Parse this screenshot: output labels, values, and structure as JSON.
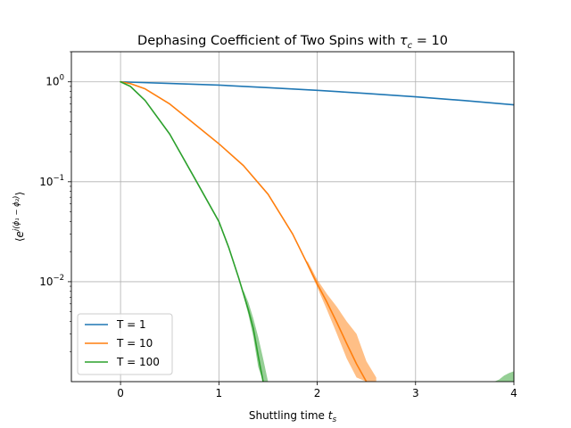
{
  "chart_data": {
    "type": "line",
    "title": "Dephasing Coefficient of Two Spins with τc = 10",
    "title_parts": {
      "main": "Dephasing Coefficient of Two Spins with ",
      "symbol": "τ",
      "sub": "c",
      "tail": " = 10"
    },
    "xlabel": "Shuttling time ts",
    "xlabel_parts": {
      "main": "Shuttling time ",
      "symbol": "t",
      "sub": "s"
    },
    "ylabel": "⟨e^{i(φ1 − φ2)}⟩",
    "ylabel_parts": {
      "open": "⟨",
      "base": "e",
      "sup": "i(ϕ₁ − ϕ₂)",
      "close": "⟩"
    },
    "xlim": [
      -0.5,
      4.0
    ],
    "ylim": [
      0.001,
      2.0
    ],
    "yscale": "log",
    "grid": true,
    "legend_position": "lower-left",
    "x_ticks": [
      {
        "value": 0,
        "label": "0"
      },
      {
        "value": 1,
        "label": "1"
      },
      {
        "value": 2,
        "label": "2"
      },
      {
        "value": 3,
        "label": "3"
      },
      {
        "value": 4,
        "label": "4"
      }
    ],
    "y_ticks": [
      {
        "value": 1,
        "base": "10",
        "exp": "0"
      },
      {
        "value": 0.1,
        "base": "10",
        "exp": "−1"
      },
      {
        "value": 0.01,
        "base": "10",
        "exp": "−2"
      }
    ],
    "series": [
      {
        "name": "T = 1",
        "color": "#1f77b4",
        "x": [
          0,
          0.5,
          1,
          1.5,
          2,
          2.5,
          3,
          3.5,
          4
        ],
        "y": [
          1.0,
          0.963,
          0.926,
          0.874,
          0.822,
          0.765,
          0.708,
          0.648,
          0.588
        ]
      },
      {
        "name": "T = 10",
        "color": "#ff7f0e",
        "x": [
          0,
          0.1,
          0.25,
          0.5,
          0.75,
          1.0,
          1.25,
          1.5,
          1.75,
          2.0,
          2.1,
          2.2,
          2.3,
          2.4,
          2.5
        ],
        "y": [
          1.0,
          0.96,
          0.85,
          0.6,
          0.38,
          0.24,
          0.145,
          0.075,
          0.03,
          0.0095,
          0.0062,
          0.0039,
          0.0024,
          0.0015,
          0.001
        ],
        "band": {
          "x": [
            1.9,
            2.0,
            2.1,
            2.2,
            2.3,
            2.4,
            2.5,
            2.6
          ],
          "lower": [
            0.0145,
            0.0088,
            0.0052,
            0.003,
            0.0017,
            0.0011,
            0.001,
            0.001
          ],
          "upper": [
            0.0162,
            0.0105,
            0.0075,
            0.0056,
            0.004,
            0.003,
            0.0016,
            0.0011
          ]
        }
      },
      {
        "name": "T = 100",
        "color": "#2ca02c",
        "x": [
          0,
          0.1,
          0.25,
          0.5,
          0.75,
          1.0,
          1.1,
          1.2,
          1.3,
          1.35,
          1.4,
          1.45
        ],
        "y": [
          1.0,
          0.9,
          0.65,
          0.3,
          0.11,
          0.04,
          0.022,
          0.011,
          0.0052,
          0.0034,
          0.0018,
          0.001
        ],
        "band": {
          "x": [
            1.25,
            1.3,
            1.35,
            1.4,
            1.45,
            1.5
          ],
          "lower": [
            0.0072,
            0.0047,
            0.0028,
            0.0014,
            0.001,
            0.001
          ],
          "upper": [
            0.0082,
            0.0062,
            0.0043,
            0.0028,
            0.0017,
            0.001
          ]
        },
        "tail_band": {
          "x": [
            3.8,
            3.85,
            3.9,
            3.95,
            4.0
          ],
          "lower": [
            0.001,
            0.001,
            0.001,
            0.001,
            0.001
          ],
          "upper": [
            0.001,
            0.00105,
            0.00115,
            0.00122,
            0.00127
          ]
        }
      }
    ]
  }
}
